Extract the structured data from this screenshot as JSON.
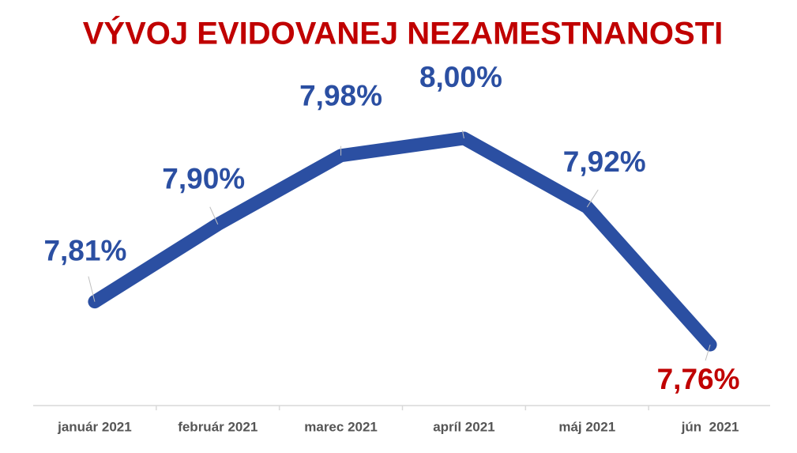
{
  "chart_data": {
    "type": "line",
    "title": "VÝVOJ EVIDOVANEJ NEZAMESTNANOSTI",
    "title_color": "#c00000",
    "categories": [
      "január 2021",
      "február 2021",
      "marec 2021",
      "apríl 2021",
      "máj 2021",
      "jún  2021"
    ],
    "series": [
      {
        "color": "#2b4fa2",
        "values": [
          7.81,
          7.9,
          7.98,
          8.0,
          7.92,
          7.76
        ],
        "value_labels": [
          "7,81%",
          "7,90%",
          "7,98%",
          "8,00%",
          "7,92%",
          "7,76%"
        ],
        "value_label_colors": [
          "#2b4fa2",
          "#2b4fa2",
          "#2b4fa2",
          "#2b4fa2",
          "#2b4fa2",
          "#c00000"
        ]
      }
    ]
  }
}
